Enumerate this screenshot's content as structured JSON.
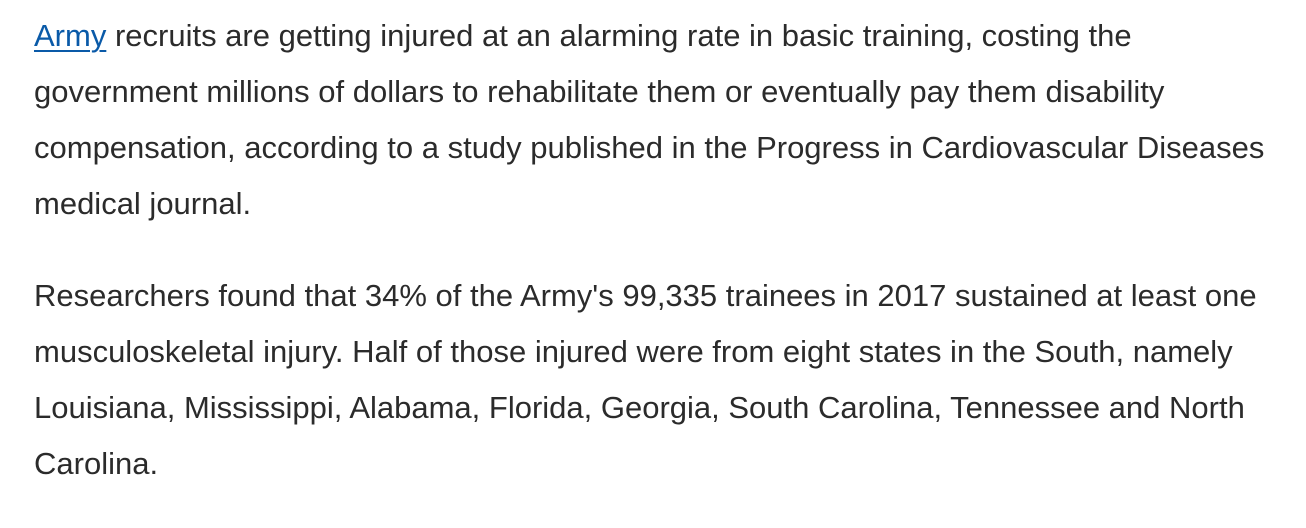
{
  "article": {
    "paragraph1": {
      "link_text": "Army",
      "text": " recruits are getting injured at an alarming rate in basic training, costing the government millions of dollars to rehabilitate them or eventually pay them disability compensation, according to a study published in the Progress in Cardiovascular Diseases medical journal."
    },
    "paragraph2": {
      "text": "Researchers found that 34% of the Army's 99,335 trainees in 2017 sustained at least one musculoskeletal injury. Half of those injured were from eight states in the South, namely Louisiana, Mississippi, Alabama, Florida, Georgia, South Carolina, Tennessee and North Carolina."
    },
    "colors": {
      "link": "#0a5aa8",
      "text": "#2b2b2b"
    }
  }
}
